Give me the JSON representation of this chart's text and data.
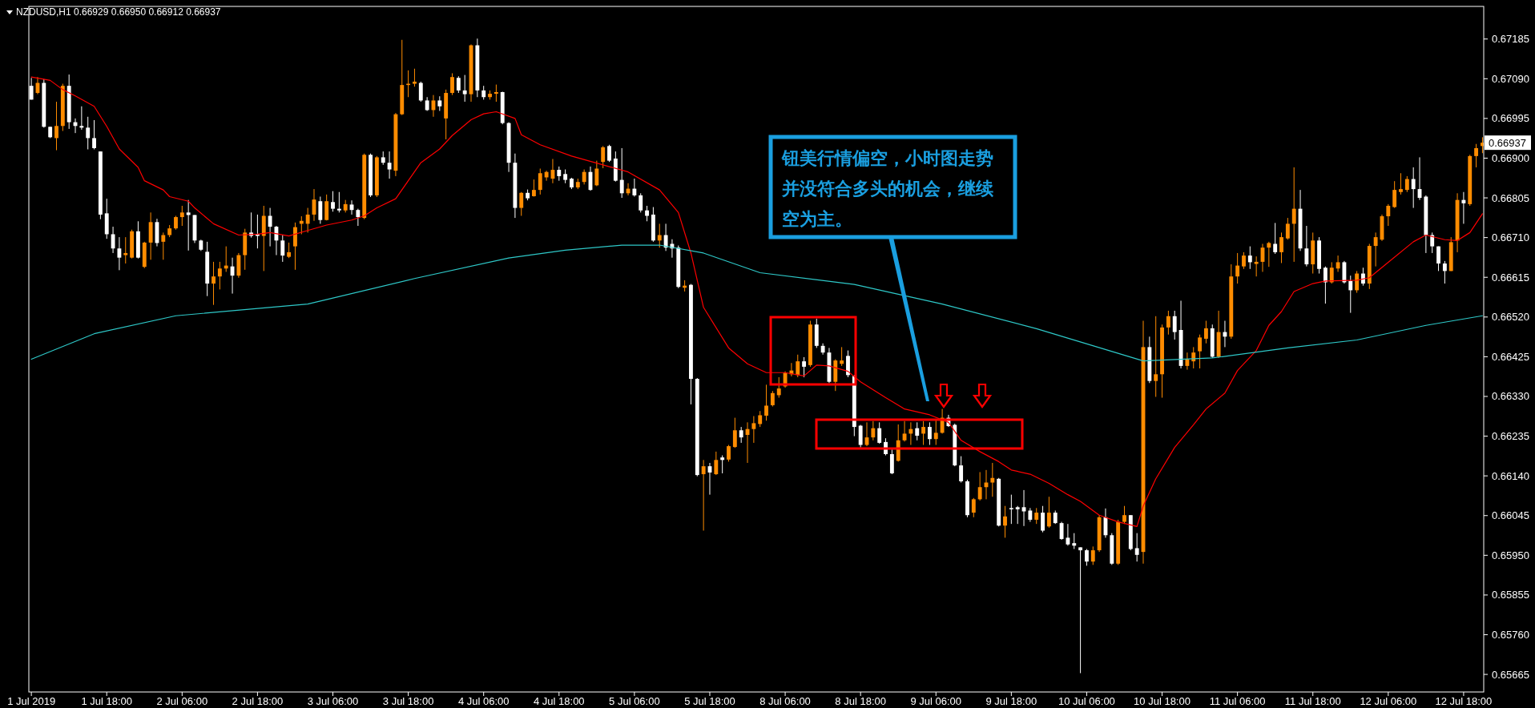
{
  "chart_data": {
    "type": "candlestick",
    "title": "NZDUSD,H1  0.66929 0.66950 0.66912 0.66937",
    "categories": [
      "1 Jul 2019",
      null,
      null,
      null,
      null,
      null,
      null,
      null,
      null,
      null,
      null,
      null,
      "1 Jul 18:00",
      null,
      null,
      null,
      null,
      null,
      null,
      null,
      null,
      null,
      null,
      null,
      "2 Jul 06:00",
      null,
      null,
      null,
      null,
      null,
      null,
      null,
      null,
      null,
      null,
      null,
      "2 Jul 18:00",
      null,
      null,
      null,
      null,
      null,
      null,
      null,
      null,
      null,
      null,
      null,
      "3 Jul 06:00",
      null,
      null,
      null,
      null,
      null,
      null,
      null,
      null,
      null,
      null,
      null,
      "3 Jul 18:00",
      null,
      null,
      null,
      null,
      null,
      null,
      null,
      null,
      null,
      null,
      null,
      "4 Jul 06:00",
      null,
      null,
      null,
      null,
      null,
      null,
      null,
      null,
      null,
      null,
      null,
      "4 Jul 18:00",
      null,
      null,
      null,
      null,
      null,
      null,
      null,
      null,
      null,
      null,
      null,
      "5 Jul 06:00",
      null,
      null,
      null,
      null,
      null,
      null,
      null,
      null,
      null,
      null,
      null,
      "5 Jul 18:00",
      null,
      null,
      null,
      null,
      null,
      null,
      null,
      null,
      null,
      null,
      null,
      "8 Jul 06:00",
      null,
      null,
      null,
      null,
      null,
      null,
      null,
      null,
      null,
      null,
      null,
      "8 Jul 18:00",
      null,
      null,
      null,
      null,
      null,
      null,
      null,
      null,
      null,
      null,
      null,
      "9 Jul 06:00",
      null,
      null,
      null,
      null,
      null,
      null,
      null,
      null,
      null,
      null,
      null,
      "9 Jul 18:00",
      null,
      null,
      null,
      null,
      null,
      null,
      null,
      null,
      null,
      null,
      null,
      "10 Jul 06:00",
      null,
      null,
      null,
      null,
      null,
      null,
      null,
      null,
      null,
      null,
      null,
      "10 Jul 18:00",
      null,
      null,
      null,
      null,
      null,
      null,
      null,
      null,
      null,
      null,
      null,
      "11 Jul 06:00",
      null,
      null,
      null,
      null,
      null,
      null,
      null,
      null,
      null,
      null,
      null,
      "11 Jul 18:00",
      null,
      null,
      null,
      null,
      null,
      null,
      null,
      null,
      null,
      null,
      null,
      "12 Jul 06:00",
      null,
      null,
      null,
      null,
      null,
      null,
      null,
      null,
      null,
      null,
      null,
      "12 Jul 18:00",
      null,
      null,
      null
    ],
    "ohlc": [
      [
        0.67073,
        0.67092,
        0.6704,
        0.6704
      ],
      [
        0.67056,
        0.67094,
        0.67053,
        0.6708
      ],
      [
        0.6708,
        0.67089,
        0.66973,
        0.66975
      ],
      [
        0.66975,
        0.66975,
        0.66948,
        0.6695
      ],
      [
        0.66948,
        0.67035,
        0.66919,
        0.66977
      ],
      [
        0.66977,
        0.67078,
        0.66965,
        0.67073
      ],
      [
        0.67073,
        0.671,
        0.6697,
        0.66986
      ],
      [
        0.66986,
        0.66995,
        0.6696,
        0.66977
      ],
      [
        0.66977,
        0.67024,
        0.66968,
        0.66973
      ],
      [
        0.66973,
        0.66999,
        0.66921,
        0.66948
      ],
      [
        0.66948,
        0.66991,
        0.66921,
        0.66924
      ],
      [
        0.66916,
        0.66916,
        0.66754,
        0.66765
      ],
      [
        0.66768,
        0.66803,
        0.66707,
        0.66718
      ],
      [
        0.66718,
        0.66736,
        0.66673,
        0.66684
      ],
      [
        0.66684,
        0.66711,
        0.66632,
        0.66662
      ],
      [
        0.66668,
        0.66711,
        0.66648,
        0.66673
      ],
      [
        0.66662,
        0.66729,
        0.6666,
        0.66725
      ],
      [
        0.66725,
        0.66749,
        0.6666,
        0.66662
      ],
      [
        0.6664,
        0.667,
        0.66637,
        0.66698
      ],
      [
        0.66698,
        0.6677,
        0.66657,
        0.66747
      ],
      [
        0.66747,
        0.66755,
        0.66689,
        0.66697
      ],
      [
        0.667,
        0.66722,
        0.66657,
        0.66716
      ],
      [
        0.66716,
        0.6674,
        0.66711,
        0.66732
      ],
      [
        0.66732,
        0.66762,
        0.66729,
        0.66759
      ],
      [
        0.66759,
        0.66786,
        0.66738,
        0.6677
      ],
      [
        0.6677,
        0.668,
        0.66679,
        0.66764
      ],
      [
        0.66764,
        0.66764,
        0.66697,
        0.66703
      ],
      [
        0.66703,
        0.66705,
        0.66678,
        0.66681
      ],
      [
        0.66676,
        0.667,
        0.6657,
        0.666
      ],
      [
        0.666,
        0.66652,
        0.66549,
        0.66617
      ],
      [
        0.66617,
        0.66652,
        0.66586,
        0.66636
      ],
      [
        0.66636,
        0.66689,
        0.66628,
        0.66643
      ],
      [
        0.66641,
        0.66662,
        0.66576,
        0.66619
      ],
      [
        0.66619,
        0.66673,
        0.66614,
        0.66668
      ],
      [
        0.66668,
        0.66731,
        0.66633,
        0.66722
      ],
      [
        0.66722,
        0.6677,
        0.6671,
        0.66714
      ],
      [
        0.66718,
        0.66765,
        0.66684,
        0.66714
      ],
      [
        0.66714,
        0.66786,
        0.6663,
        0.66762
      ],
      [
        0.66762,
        0.66781,
        0.66689,
        0.66736
      ],
      [
        0.66736,
        0.66738,
        0.66668,
        0.66703
      ],
      [
        0.66703,
        0.66716,
        0.66652,
        0.66667
      ],
      [
        0.66664,
        0.66698,
        0.66661,
        0.66675
      ],
      [
        0.66689,
        0.66746,
        0.66633,
        0.66735
      ],
      [
        0.66743,
        0.66761,
        0.66718,
        0.6675
      ],
      [
        0.66743,
        0.66781,
        0.66722,
        0.66765
      ],
      [
        0.66765,
        0.66826,
        0.6675,
        0.66801
      ],
      [
        0.66797,
        0.66808,
        0.66743,
        0.66752
      ],
      [
        0.66752,
        0.66813,
        0.66751,
        0.66797
      ],
      [
        0.66795,
        0.66821,
        0.66772,
        0.66779
      ],
      [
        0.66779,
        0.66819,
        0.6677,
        0.66775
      ],
      [
        0.66775,
        0.668,
        0.6677,
        0.6679
      ],
      [
        0.66789,
        0.66799,
        0.66765,
        0.66776
      ],
      [
        0.66776,
        0.66779,
        0.66738,
        0.66759
      ],
      [
        0.66757,
        0.66911,
        0.66754,
        0.66908
      ],
      [
        0.66908,
        0.66911,
        0.66807,
        0.66811
      ],
      [
        0.66811,
        0.66905,
        0.66807,
        0.66902
      ],
      [
        0.66902,
        0.66916,
        0.66884,
        0.66889
      ],
      [
        0.66889,
        0.66916,
        0.66851,
        0.66873
      ],
      [
        0.6687,
        0.67008,
        0.66857,
        0.67005
      ],
      [
        0.67005,
        0.67183,
        0.67003,
        0.67075
      ],
      [
        0.67075,
        0.6711,
        0.67046,
        0.67078
      ],
      [
        0.67078,
        0.67114,
        0.67071,
        0.67083
      ],
      [
        0.6708,
        0.67083,
        0.67035,
        0.67038
      ],
      [
        0.67038,
        0.67046,
        0.67013,
        0.67015
      ],
      [
        0.67015,
        0.67051,
        0.66999,
        0.67038
      ],
      [
        0.67038,
        0.67048,
        0.67013,
        0.67024
      ],
      [
        0.66995,
        0.67064,
        0.66945,
        0.67056
      ],
      [
        0.67056,
        0.67103,
        0.67051,
        0.67094
      ],
      [
        0.67092,
        0.67096,
        0.67056,
        0.67062
      ],
      [
        0.67062,
        0.67099,
        0.67035,
        0.67053
      ],
      [
        0.67053,
        0.67172,
        0.67035,
        0.6717
      ],
      [
        0.6717,
        0.67186,
        0.67046,
        0.67062
      ],
      [
        0.67062,
        0.67073,
        0.6704,
        0.67046
      ],
      [
        0.67046,
        0.67062,
        0.6704,
        0.67054
      ],
      [
        0.67054,
        0.67076,
        0.67035,
        0.67058
      ],
      [
        0.67058,
        0.67059,
        0.66981,
        0.66984
      ],
      [
        0.66984,
        0.66986,
        0.66867,
        0.66889
      ],
      [
        0.66889,
        0.66911,
        0.66757,
        0.66781
      ],
      [
        0.66781,
        0.66819,
        0.66762,
        0.66817
      ],
      [
        0.66817,
        0.66825,
        0.66799,
        0.66804
      ],
      [
        0.66809,
        0.66849,
        0.66808,
        0.66824
      ],
      [
        0.66824,
        0.66875,
        0.66813,
        0.66864
      ],
      [
        0.66854,
        0.6687,
        0.66846,
        0.66867
      ],
      [
        0.66851,
        0.66898,
        0.6684,
        0.66872
      ],
      [
        0.66872,
        0.6688,
        0.66846,
        0.66857
      ],
      [
        0.66862,
        0.66873,
        0.6684,
        0.66848
      ],
      [
        0.66851,
        0.66853,
        0.66826,
        0.6683
      ],
      [
        0.6683,
        0.66851,
        0.66826,
        0.66843
      ],
      [
        0.66843,
        0.66873,
        0.66837,
        0.66867
      ],
      [
        0.66867,
        0.6688,
        0.66822,
        0.66824
      ],
      [
        0.66835,
        0.66894,
        0.66833,
        0.66875
      ],
      [
        0.66891,
        0.66929,
        0.66876,
        0.66926
      ],
      [
        0.66929,
        0.66932,
        0.66891,
        0.66894
      ],
      [
        0.66899,
        0.66916,
        0.66844,
        0.66846
      ],
      [
        0.66848,
        0.66924,
        0.66805,
        0.66816
      ],
      [
        0.66816,
        0.6684,
        0.66811,
        0.66827
      ],
      [
        0.66827,
        0.66851,
        0.66808,
        0.66811
      ],
      [
        0.66811,
        0.66816,
        0.6677,
        0.66775
      ],
      [
        0.66775,
        0.66786,
        0.66749,
        0.66762
      ],
      [
        0.66765,
        0.66783,
        0.667,
        0.66703
      ],
      [
        0.66703,
        0.66743,
        0.66686,
        0.66716
      ],
      [
        0.66716,
        0.66743,
        0.66678,
        0.66686
      ],
      [
        0.66695,
        0.66706,
        0.66662,
        0.66684
      ],
      [
        0.66686,
        0.66691,
        0.66589,
        0.66592
      ],
      [
        0.6659,
        0.66608,
        0.66581,
        0.66595
      ],
      [
        0.66597,
        0.66599,
        0.66311,
        0.66372
      ],
      [
        0.66372,
        0.66374,
        0.66139,
        0.66142
      ],
      [
        0.66144,
        0.66178,
        0.66009,
        0.66163
      ],
      [
        0.66163,
        0.66171,
        0.66095,
        0.66148
      ],
      [
        0.66144,
        0.66198,
        0.66142,
        0.66178
      ],
      [
        0.66184,
        0.66189,
        0.66146,
        0.66178
      ],
      [
        0.66179,
        0.66214,
        0.66174,
        0.66211
      ],
      [
        0.66209,
        0.66279,
        0.66207,
        0.66249
      ],
      [
        0.66249,
        0.66257,
        0.66219,
        0.66232
      ],
      [
        0.66238,
        0.66268,
        0.66171,
        0.66252
      ],
      [
        0.66252,
        0.66283,
        0.66219,
        0.66266
      ],
      [
        0.66264,
        0.66295,
        0.66257,
        0.66285
      ],
      [
        0.66284,
        0.66358,
        0.66272,
        0.66308
      ],
      [
        0.66309,
        0.66343,
        0.66306,
        0.66338
      ],
      [
        0.66333,
        0.66376,
        0.66327,
        0.66349
      ],
      [
        0.66354,
        0.6639,
        0.66351,
        0.66387
      ],
      [
        0.66383,
        0.6641,
        0.66378,
        0.66392
      ],
      [
        0.66381,
        0.6643,
        0.66376,
        0.66414
      ],
      [
        0.66414,
        0.66424,
        0.66376,
        0.66401
      ],
      [
        0.66405,
        0.66511,
        0.66401,
        0.66502
      ],
      [
        0.66502,
        0.66516,
        0.66446,
        0.66451
      ],
      [
        0.66451,
        0.66457,
        0.6643,
        0.66435
      ],
      [
        0.66435,
        0.66446,
        0.66362,
        0.66365
      ],
      [
        0.66365,
        0.66419,
        0.66343,
        0.66416
      ],
      [
        0.66408,
        0.66448,
        0.66403,
        0.66416
      ],
      [
        0.66427,
        0.6644,
        0.66376,
        0.66381
      ],
      [
        0.66379,
        0.66381,
        0.66235,
        0.66257
      ],
      [
        0.6626,
        0.66262,
        0.66208,
        0.66214
      ],
      [
        0.66214,
        0.66268,
        0.66211,
        0.66232
      ],
      [
        0.66232,
        0.66271,
        0.66225,
        0.66254
      ],
      [
        0.66254,
        0.66268,
        0.66217,
        0.66219
      ],
      [
        0.66221,
        0.6623,
        0.66189,
        0.66192
      ],
      [
        0.66192,
        0.66203,
        0.66144,
        0.66146
      ],
      [
        0.66176,
        0.66263,
        0.66174,
        0.66225
      ],
      [
        0.66225,
        0.66271,
        0.66222,
        0.66241
      ],
      [
        0.66241,
        0.66268,
        0.66214,
        0.66252
      ],
      [
        0.66254,
        0.66268,
        0.66225,
        0.66236
      ],
      [
        0.66241,
        0.66271,
        0.66214,
        0.66257
      ],
      [
        0.66257,
        0.66268,
        0.66214,
        0.66228
      ],
      [
        0.66228,
        0.66273,
        0.66214,
        0.66243
      ],
      [
        0.66243,
        0.663,
        0.66241,
        0.66279
      ],
      [
        0.66279,
        0.66286,
        0.66257,
        0.66259
      ],
      [
        0.66262,
        0.66265,
        0.66163,
        0.66165
      ],
      [
        0.66165,
        0.66187,
        0.66124,
        0.66127
      ],
      [
        0.66127,
        0.66131,
        0.66041,
        0.66046
      ],
      [
        0.66052,
        0.66087,
        0.66041,
        0.66084
      ],
      [
        0.66084,
        0.66149,
        0.66081,
        0.66113
      ],
      [
        0.66113,
        0.66154,
        0.66084,
        0.66124
      ],
      [
        0.66124,
        0.66171,
        0.6609,
        0.66135
      ],
      [
        0.66133,
        0.66135,
        0.66019,
        0.66021
      ],
      [
        0.66021,
        0.66068,
        0.65992,
        0.66043
      ],
      [
        0.66063,
        0.66095,
        0.66025,
        0.6606
      ],
      [
        0.66065,
        0.66068,
        0.66025,
        0.6606
      ],
      [
        0.66065,
        0.66106,
        0.6602,
        0.66055
      ],
      [
        0.66057,
        0.66063,
        0.6603,
        0.66035
      ],
      [
        0.66035,
        0.66063,
        0.66025,
        0.66052
      ],
      [
        0.66052,
        0.66068,
        0.66005,
        0.66009
      ],
      [
        0.66019,
        0.6609,
        0.66016,
        0.66052
      ],
      [
        0.66052,
        0.66057,
        0.66025,
        0.66027
      ],
      [
        0.66027,
        0.6603,
        0.65987,
        0.65989
      ],
      [
        0.65992,
        0.66025,
        0.65973,
        0.65976
      ],
      [
        0.65979,
        0.66003,
        0.65965,
        0.65973
      ],
      [
        0.65969,
        0.65969,
        0.65668,
        0.65962
      ],
      [
        0.65962,
        0.65965,
        0.65925,
        0.65935
      ],
      [
        0.65935,
        0.65971,
        0.65927,
        0.65962
      ],
      [
        0.65962,
        0.66046,
        0.65958,
        0.66041
      ],
      [
        0.66041,
        0.66062,
        0.65992,
        0.65998
      ],
      [
        0.65998,
        0.66003,
        0.65927,
        0.6593
      ],
      [
        0.6593,
        0.66035,
        0.65927,
        0.6603
      ],
      [
        0.6603,
        0.66068,
        0.66025,
        0.66046
      ],
      [
        0.66046,
        0.66046,
        0.65962,
        0.65965
      ],
      [
        0.65967,
        0.66003,
        0.65935,
        0.65951
      ],
      [
        0.65958,
        0.66511,
        0.6593,
        0.66448
      ],
      [
        0.66448,
        0.66473,
        0.66362,
        0.66367
      ],
      [
        0.66367,
        0.66522,
        0.66329,
        0.66383
      ],
      [
        0.66383,
        0.66502,
        0.66327,
        0.66495
      ],
      [
        0.66495,
        0.66535,
        0.66478,
        0.66522
      ],
      [
        0.66522,
        0.66535,
        0.66466,
        0.66484
      ],
      [
        0.66489,
        0.66559,
        0.66397,
        0.66403
      ],
      [
        0.66403,
        0.66435,
        0.66394,
        0.66419
      ],
      [
        0.66414,
        0.66448,
        0.66397,
        0.66435
      ],
      [
        0.66438,
        0.66478,
        0.66397,
        0.66471
      ],
      [
        0.66468,
        0.66511,
        0.66457,
        0.66493
      ],
      [
        0.66493,
        0.66502,
        0.66422,
        0.66425
      ],
      [
        0.66425,
        0.66535,
        0.66422,
        0.66484
      ],
      [
        0.66484,
        0.66511,
        0.66448,
        0.66473
      ],
      [
        0.66473,
        0.66646,
        0.66468,
        0.66617
      ],
      [
        0.66617,
        0.66673,
        0.666,
        0.66643
      ],
      [
        0.66641,
        0.66675,
        0.66635,
        0.66667
      ],
      [
        0.66667,
        0.66689,
        0.66635,
        0.66651
      ],
      [
        0.66647,
        0.66665,
        0.66617,
        0.66652
      ],
      [
        0.66652,
        0.66695,
        0.66628,
        0.66686
      ],
      [
        0.66686,
        0.667,
        0.6664,
        0.66697
      ],
      [
        0.66695,
        0.66745,
        0.66671,
        0.66675
      ],
      [
        0.66675,
        0.66722,
        0.66649,
        0.66711
      ],
      [
        0.66708,
        0.66757,
        0.66705,
        0.66743
      ],
      [
        0.66743,
        0.66878,
        0.66652,
        0.66779
      ],
      [
        0.66779,
        0.66824,
        0.66678,
        0.66684
      ],
      [
        0.66684,
        0.66738,
        0.66641,
        0.66646
      ],
      [
        0.66646,
        0.66722,
        0.66624,
        0.66703
      ],
      [
        0.66703,
        0.66711,
        0.66624,
        0.66635
      ],
      [
        0.66638,
        0.66641,
        0.66552,
        0.66603
      ],
      [
        0.66603,
        0.66651,
        0.666,
        0.66638
      ],
      [
        0.66636,
        0.66667,
        0.66628,
        0.66651
      ],
      [
        0.66651,
        0.66654,
        0.666,
        0.66603
      ],
      [
        0.66606,
        0.66619,
        0.6653,
        0.66584
      ],
      [
        0.66584,
        0.6663,
        0.66578,
        0.66624
      ],
      [
        0.66624,
        0.66638,
        0.66595,
        0.666
      ],
      [
        0.666,
        0.66695,
        0.66587,
        0.6669
      ],
      [
        0.6669,
        0.66722,
        0.66641,
        0.66711
      ],
      [
        0.66705,
        0.66765,
        0.66702,
        0.66761
      ],
      [
        0.66761,
        0.6679,
        0.66738,
        0.66786
      ],
      [
        0.66783,
        0.66845,
        0.66781,
        0.66824
      ],
      [
        0.66819,
        0.66864,
        0.66813,
        0.66826
      ],
      [
        0.66824,
        0.66857,
        0.66819,
        0.6685
      ],
      [
        0.6685,
        0.66878,
        0.66781,
        0.66826
      ],
      [
        0.66826,
        0.66902,
        0.668,
        0.66805
      ],
      [
        0.66808,
        0.66811,
        0.66673,
        0.66716
      ],
      [
        0.66716,
        0.66722,
        0.66673,
        0.66689
      ],
      [
        0.66689,
        0.66689,
        0.6663,
        0.66648
      ],
      [
        0.66648,
        0.66654,
        0.666,
        0.6663
      ],
      [
        0.6663,
        0.66711,
        0.6663,
        0.66699
      ],
      [
        0.66703,
        0.66816,
        0.66675,
        0.668
      ],
      [
        0.668,
        0.66819,
        0.66743,
        0.66792
      ],
      [
        0.6679,
        0.66908,
        0.66786,
        0.66905
      ],
      [
        0.66905,
        0.66934,
        0.66878,
        0.66924
      ],
      [
        0.66929,
        0.6695,
        0.66912,
        0.66937
      ]
    ],
    "colors": [
      "#ffffff",
      "#ff8c00",
      "#ffffff",
      "#ffffff",
      "#ff8c00",
      "#ff8c00",
      "#ffffff",
      "#ffffff",
      "#ffffff",
      "#ffffff",
      "#ffffff",
      "#ffffff",
      "#ffffff",
      "#ffffff",
      "#ffffff",
      "#ff8c00",
      "#ff8c00",
      "#ffffff",
      "#ff8c00",
      "#ff8c00",
      "#ffffff",
      "#ff8c00",
      "#ff8c00",
      "#ff8c00",
      "#ff8c00",
      "#ffffff",
      "#ffffff",
      "#ffffff",
      "#ffffff",
      "#ff8c00",
      "#ff8c00",
      "#ff8c00",
      "#ffffff",
      "#ff8c00",
      "#ff8c00",
      "#ffffff",
      "#ffffff",
      "#ff8c00",
      "#ffffff",
      "#ffffff",
      "#ffffff",
      "#ff8c00",
      "#ff8c00",
      "#ff8c00",
      "#ff8c00",
      "#ff8c00",
      "#ffffff",
      "#ff8c00",
      "#ffffff",
      "#ffffff",
      "#ff8c00",
      "#ffffff",
      "#ffffff",
      "#ff8c00",
      "#ffffff",
      "#ff8c00",
      "#ffffff",
      "#ffffff",
      "#ff8c00",
      "#ff8c00",
      "#ff8c00",
      "#ff8c00",
      "#ffffff",
      "#ffffff",
      "#ff8c00",
      "#ffffff",
      "#ff8c00",
      "#ff8c00",
      "#ffffff",
      "#ffffff",
      "#ff8c00",
      "#ffffff",
      "#ffffff",
      "#ff8c00",
      "#ff8c00",
      "#ffffff",
      "#ffffff",
      "#ffffff",
      "#ff8c00",
      "#ffffff",
      "#ff8c00",
      "#ff8c00",
      "#ff8c00",
      "#ff8c00",
      "#ffffff",
      "#ffffff",
      "#ffffff",
      "#ff8c00",
      "#ff8c00",
      "#ffffff",
      "#ff8c00",
      "#ff8c00",
      "#ffffff",
      "#ffffff",
      "#ffffff",
      "#ff8c00",
      "#ffffff",
      "#ffffff",
      "#ffffff",
      "#ffffff",
      "#ff8c00",
      "#ffffff",
      "#ffffff",
      "#ffffff",
      "#ff8c00",
      "#ffffff",
      "#ffffff",
      "#ff8c00",
      "#ffffff",
      "#ff8c00",
      "#ffffff",
      "#ff8c00",
      "#ff8c00",
      "#ffffff",
      "#ff8c00",
      "#ff8c00",
      "#ff8c00",
      "#ff8c00",
      "#ff8c00",
      "#ff8c00",
      "#ff8c00",
      "#ff8c00",
      "#ff8c00",
      "#ffffff",
      "#ff8c00",
      "#ffffff",
      "#ffffff",
      "#ffffff",
      "#ff8c00",
      "#ff8c00",
      "#ffffff",
      "#ffffff",
      "#ffffff",
      "#ff8c00",
      "#ff8c00",
      "#ffffff",
      "#ffffff",
      "#ffffff",
      "#ff8c00",
      "#ff8c00",
      "#ff8c00",
      "#ffffff",
      "#ff8c00",
      "#ffffff",
      "#ff8c00",
      "#ff8c00",
      "#ffffff",
      "#ffffff",
      "#ffffff",
      "#ffffff",
      "#ff8c00",
      "#ff8c00",
      "#ff8c00",
      "#ff8c00",
      "#ffffff",
      "#ff8c00",
      "#ffffff",
      "#ffffff",
      "#ffffff",
      "#ffffff",
      "#ff8c00",
      "#ffffff",
      "#ff8c00",
      "#ffffff",
      "#ffffff",
      "#ffffff",
      "#ffffff",
      "#ffffff",
      "#ffffff",
      "#ff8c00",
      "#ff8c00",
      "#ffffff",
      "#ffffff",
      "#ff8c00",
      "#ff8c00",
      "#ffffff",
      "#ffffff",
      "#ff8c00",
      "#ffffff",
      "#ff8c00",
      "#ff8c00",
      "#ff8c00",
      "#ffffff",
      "#ffffff",
      "#ff8c00",
      "#ff8c00",
      "#ff8c00",
      "#ff8c00",
      "#ffffff",
      "#ff8c00",
      "#ffffff",
      "#ff8c00",
      "#ff8c00",
      "#ff8c00",
      "#ffffff",
      "#ff8c00",
      "#ff8c00",
      "#ff8c00",
      "#ffffff",
      "#ff8c00",
      "#ff8c00",
      "#ff8c00",
      "#ffffff",
      "#ffffff",
      "#ff8c00",
      "#ffffff",
      "#ffffff",
      "#ff8c00",
      "#ff8c00",
      "#ffffff",
      "#ffffff",
      "#ff8c00",
      "#ffffff",
      "#ff8c00",
      "#ff8c00",
      "#ff8c00",
      "#ff8c00",
      "#ff8c00",
      "#ff8c00",
      "#ff8c00",
      "#ffffff",
      "#ffffff",
      "#ffffff",
      "#ffffff",
      "#ffffff",
      "#ffffff",
      "#ff8c00",
      "#ff8c00",
      "#ffffff",
      "#ff8c00",
      "#ff8c00",
      "#ff8c00"
    ],
    "series": [
      {
        "type": "line",
        "color": "#ff0000",
        "values": [
          0.67094,
          null,
          null,
          0.67086,
          null,
          0.67064,
          null,
          0.67049,
          null,
          null,
          0.67024,
          null,
          0.66976,
          null,
          0.66922,
          null,
          null,
          0.66878,
          0.66846,
          null,
          null,
          0.66824,
          0.66808,
          null,
          null,
          0.66797,
          0.66781,
          null,
          null,
          0.66743,
          null,
          null,
          null,
          0.66716,
          null,
          null,
          0.66718,
          null,
          0.66722,
          null,
          null,
          0.66714,
          null,
          null,
          0.66727,
          null,
          null,
          0.6674,
          null,
          null,
          null,
          0.66752,
          null,
          0.66762,
          null,
          0.66781,
          null,
          null,
          0.66803,
          null,
          0.66846,
          null,
          0.66889,
          null,
          null,
          0.66922,
          null,
          0.66954,
          null,
          null,
          0.66992,
          null,
          0.67006,
          null,
          0.67011,
          null,
          null,
          0.66995,
          0.66956,
          null,
          null,
          0.66932,
          null,
          null,
          null,
          null,
          0.66905,
          null,
          null,
          null,
          null,
          0.66884,
          null,
          null,
          null,
          0.66867,
          null,
          null,
          null,
          null,
          0.66824,
          null,
          null,
          0.6677,
          null,
          0.66673,
          null,
          0.66543,
          null,
          null,
          null,
          0.66446,
          null,
          null,
          0.66408,
          null,
          null,
          0.66387,
          null,
          null,
          0.66387,
          null,
          null,
          0.66379,
          null,
          0.66405,
          null,
          0.66403,
          null,
          null,
          0.6639,
          null,
          0.66365,
          null,
          null,
          null,
          0.66327,
          null,
          null,
          0.663,
          null,
          null,
          null,
          0.66286,
          null,
          null,
          0.66268,
          null,
          0.66225,
          null,
          null,
          0.66198,
          null,
          null,
          0.66174,
          null,
          0.66154,
          null,
          null,
          0.66144,
          null,
          null,
          0.66122,
          null,
          null,
          0.66095,
          null,
          0.66079,
          null,
          null,
          0.66046,
          null,
          null,
          0.6603,
          null,
          null,
          0.66019,
          0.66068,
          null,
          0.66133,
          null,
          null,
          0.66208,
          null,
          null,
          0.66262,
          null,
          0.663,
          null,
          null,
          0.66338,
          null,
          0.66392,
          null,
          null,
          0.6644,
          null,
          0.665,
          null,
          0.66533,
          null,
          0.66581,
          null,
          null,
          0.666,
          null,
          0.66606,
          null,
          null,
          null,
          null,
          0.66608,
          null,
          0.66614,
          null,
          null,
          0.66651,
          null,
          null,
          null,
          0.667,
          null,
          0.66716,
          null,
          null,
          0.66705,
          null,
          0.66703,
          null,
          0.66722,
          null,
          0.66767
        ]
      },
      {
        "type": "line",
        "color": "#2ec8c8",
        "values": [
          0.66419,
          null,
          null,
          null,
          null,
          null,
          null,
          null,
          null,
          null,
          0.6648,
          null,
          null,
          null,
          null,
          null,
          null,
          null,
          null,
          null,
          null,
          null,
          null,
          0.66523,
          null,
          null,
          null,
          null,
          null,
          null,
          null,
          null,
          null,
          null,
          null,
          null,
          null,
          null,
          null,
          null,
          null,
          null,
          null,
          null,
          0.66551,
          null,
          null,
          null,
          null,
          null,
          null,
          null,
          null,
          null,
          null,
          null,
          null,
          null,
          null,
          null,
          null,
          0.66612,
          null,
          null,
          null,
          null,
          null,
          null,
          null,
          null,
          null,
          null,
          null,
          null,
          null,
          null,
          0.66661,
          null,
          null,
          null,
          null,
          null,
          null,
          null,
          null,
          0.6668,
          null,
          null,
          null,
          null,
          null,
          null,
          null,
          null,
          0.66692,
          null,
          null,
          null,
          null,
          null,
          0.66692,
          null,
          null,
          null,
          null,
          null,
          null,
          0.66673,
          null,
          null,
          null,
          null,
          null,
          null,
          null,
          null,
          0.66626,
          null,
          null,
          null,
          null,
          null,
          null,
          null,
          null,
          null,
          null,
          null,
          null,
          null,
          null,
          0.66598,
          null,
          null,
          null,
          null,
          null,
          null,
          null,
          null,
          null,
          null,
          null,
          null,
          null,
          0.66551,
          null,
          null,
          null,
          null,
          null,
          null,
          null,
          null,
          null,
          null,
          null,
          null,
          null,
          null,
          0.66492,
          null,
          null,
          null,
          null,
          null,
          null,
          null,
          null,
          null,
          null,
          null,
          null,
          null,
          null,
          null,
          null,
          0.66415,
          null,
          null,
          null,
          null,
          null,
          null,
          null,
          null,
          null,
          null,
          0.66422,
          null,
          null,
          null,
          null,
          null,
          null,
          null,
          null,
          null,
          null,
          null,
          0.66446,
          null,
          null,
          null,
          null,
          null,
          null,
          null,
          null,
          null,
          null,
          0.66465,
          null,
          null,
          null,
          null,
          null,
          null,
          null,
          null,
          null,
          null,
          0.665,
          null,
          null,
          null,
          null,
          null,
          null,
          null,
          null,
          0.66523
        ]
      }
    ],
    "ylim": [
      0.65623,
      0.67263
    ],
    "yticks": [
      {
        "value": 0.65665,
        "label": "0.65665"
      },
      {
        "value": 0.6576,
        "label": "0.65760"
      },
      {
        "value": 0.65855,
        "label": "0.65855"
      },
      {
        "value": 0.6595,
        "label": "0.65950"
      },
      {
        "value": 0.66045,
        "label": "0.66045"
      },
      {
        "value": 0.6614,
        "label": "0.66140"
      },
      {
        "value": 0.66235,
        "label": "0.66235"
      },
      {
        "value": 0.6633,
        "label": "0.66330"
      },
      {
        "value": 0.66425,
        "label": "0.66425"
      },
      {
        "value": 0.6652,
        "label": "0.66520"
      },
      {
        "value": 0.66615,
        "label": "0.66615"
      },
      {
        "value": 0.6671,
        "label": "0.66710"
      },
      {
        "value": 0.66805,
        "label": "0.66805"
      },
      {
        "value": 0.669,
        "label": "0.66900"
      },
      {
        "value": 0.66995,
        "label": "0.66995"
      },
      {
        "value": 0.6709,
        "label": "0.67090"
      },
      {
        "value": 0.67185,
        "label": "0.67185"
      }
    ],
    "annotations": [
      "钮美行情偏空，小时图走势并没符合多头的机会，继续空为主。",
      "0.66937"
    ]
  }
}
